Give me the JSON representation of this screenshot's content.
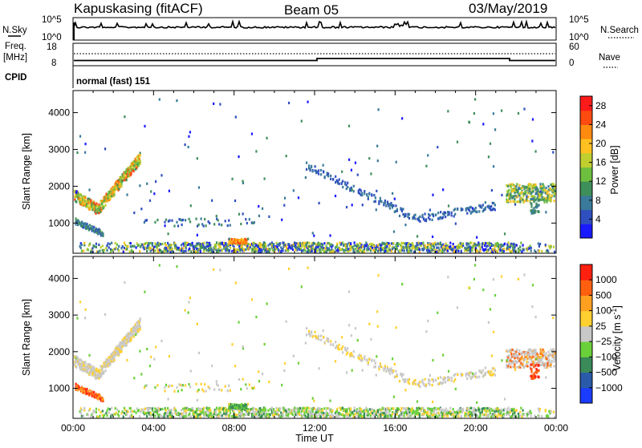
{
  "header": {
    "station": "Kapuskasing (fitACF)",
    "beam": "Beam 05",
    "date": "03/May/2019"
  },
  "status_panels": {
    "nsky_label": "N.Sky",
    "nsky_ticks": [
      "10^5",
      "10^0"
    ],
    "nsearch_label": "N.Search",
    "nsearch_ticks": [
      "10^5",
      "10^0"
    ],
    "freq_label": "Freq.",
    "freq_unit": "[MHz]",
    "freq_ticks": [
      "18",
      "8"
    ],
    "nave_label": "Nave",
    "nave_ticks": [
      "60",
      "0"
    ],
    "cpid_label": "CPID",
    "cpid_value": "normal (fast) 151"
  },
  "chart_data": [
    {
      "type": "heatmap",
      "name": "power",
      "ylabel": "Slant Range [km]",
      "xlabel": "",
      "x_ticks": [
        "00:00",
        "04:00",
        "08:00",
        "12:00",
        "16:00",
        "20:00",
        "00:00"
      ],
      "x_range_hours": [
        0,
        24
      ],
      "y_ticks": [
        1000,
        2000,
        3000,
        4000
      ],
      "y_range_km": [
        180,
        4600
      ],
      "colorbar": {
        "label": "Power [dB]",
        "ticks": [
          "4",
          "8",
          "12",
          "16",
          "20",
          "24",
          "28"
        ],
        "range": [
          0,
          30
        ],
        "colors": [
          "#1a1aff",
          "#2f4fbf",
          "#3a7a9a",
          "#3f8f5a",
          "#6fbf3f",
          "#c0cf2f",
          "#ffc020",
          "#ff8a10",
          "#ff4a10",
          "#ff1a1a"
        ]
      }
    },
    {
      "type": "heatmap",
      "name": "velocity",
      "ylabel": "Slant Range [km]",
      "xlabel": "Time UT",
      "x_ticks": [
        "00:00",
        "04:00",
        "08:00",
        "12:00",
        "16:00",
        "20:00",
        "00:00"
      ],
      "x_range_hours": [
        0,
        24
      ],
      "y_ticks": [
        1000,
        2000,
        3000,
        4000
      ],
      "y_range_km": [
        180,
        4600
      ],
      "colorbar": {
        "label": "Velocity [m s",
        "label_sup": "-1",
        "label_end": "]",
        "ticks": [
          "1000",
          "500",
          "100",
          "25",
          "−25",
          "−100",
          "−500",
          "−1000"
        ],
        "colors": [
          "#1a3cff",
          "#2a5aaa",
          "#3a8a5a",
          "#6ad03a",
          "#c8c8c8",
          "#ffd030",
          "#ffa020",
          "#ff6010",
          "#ff2010"
        ]
      }
    }
  ]
}
